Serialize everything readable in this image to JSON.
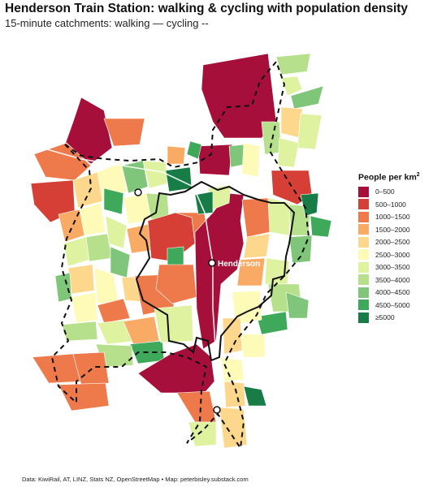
{
  "title": "Henderson Train Station: walking & cycling with population density",
  "subtitle": "15-minute catchments: walking — cycling --",
  "legend": {
    "title": "People per km",
    "title_sup": "2",
    "bins": [
      {
        "label": "0–500",
        "color": "#a50f3a"
      },
      {
        "label": "500–1000",
        "color": "#d63f35"
      },
      {
        "label": "1000–1500",
        "color": "#ee7a4c"
      },
      {
        "label": "1500–2000",
        "color": "#f9aa64"
      },
      {
        "label": "2000–2500",
        "color": "#fdd78b"
      },
      {
        "label": "2500–3000",
        "color": "#fefbb9"
      },
      {
        "label": "3000–3500",
        "color": "#def2a0"
      },
      {
        "label": "3500–4000",
        "color": "#b6e08b"
      },
      {
        "label": "4000–4500",
        "color": "#7fc67a"
      },
      {
        "label": "4500–5000",
        "color": "#3ea95a"
      },
      {
        "label": "≥5000",
        "color": "#177c45"
      }
    ]
  },
  "station": {
    "label": "Henderson"
  },
  "caption": "Data: KiwiRail, AT, LINZ, Stats NZ, OpenStreetMap • Map: peterbisley.substack.com"
}
